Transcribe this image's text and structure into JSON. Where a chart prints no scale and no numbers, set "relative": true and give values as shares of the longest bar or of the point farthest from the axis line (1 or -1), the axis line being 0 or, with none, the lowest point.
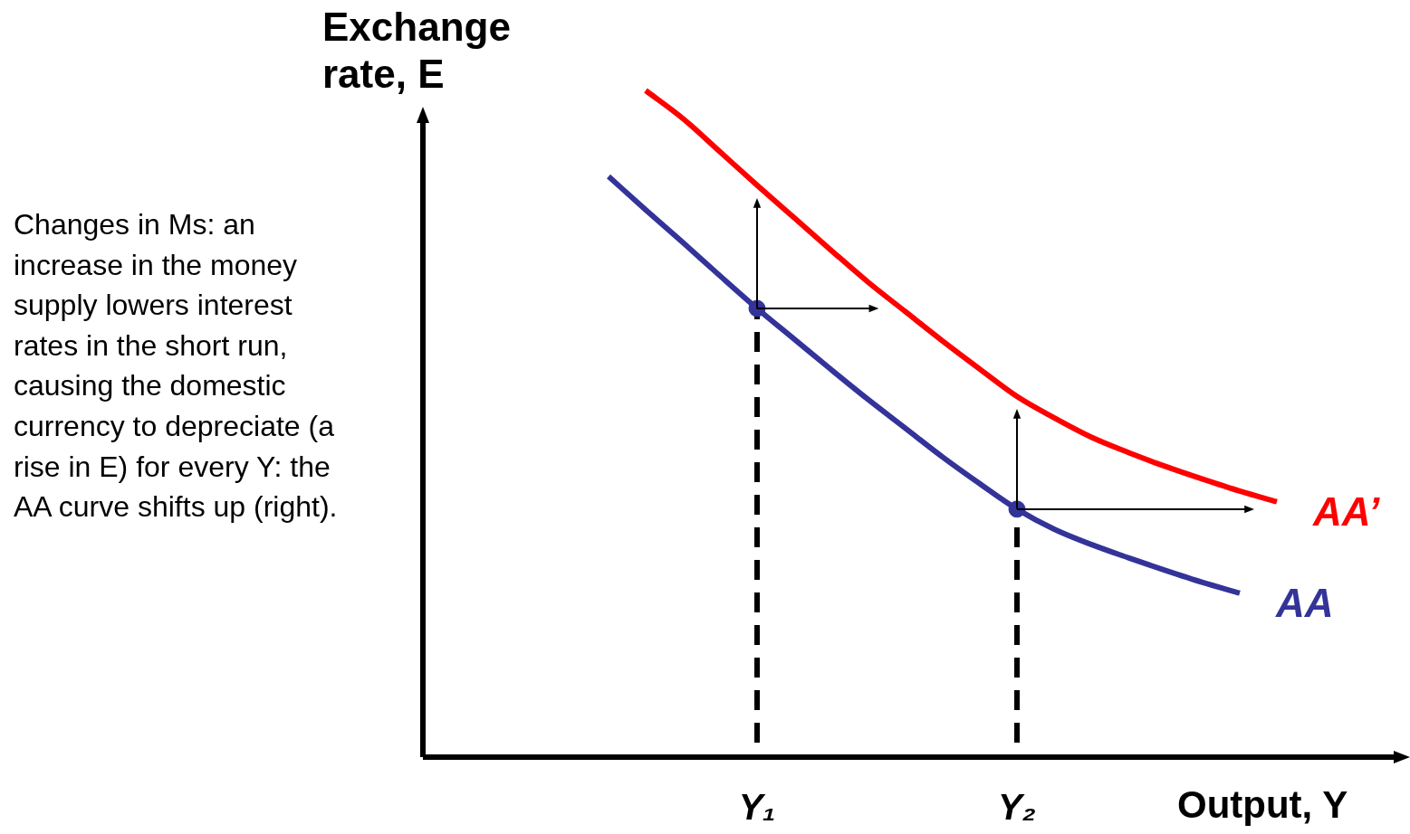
{
  "chart_data": {
    "type": "line",
    "relative": true,
    "categories": [
      null,
      null,
      null,
      null,
      null,
      null,
      null,
      null,
      null,
      "Y₁",
      null,
      null,
      null,
      null,
      null,
      null,
      "Y₂",
      null,
      null,
      null,
      null,
      null,
      null,
      null,
      null,
      null,
      null
    ],
    "xlabel": "Output, Y",
    "ylabel": "Exchange rate, E",
    "marker": "none",
    "annotations": [
      "Changes in Ms: an increase in the money supply lowers interest rates in the short run, causing the domestic currency to depreciate (a rise in E) for every Y: the AA curve shifts up (right)."
    ],
    "ref_lines": [
      {
        "axis": "x",
        "value": "Y₁",
        "line_style": "dashed",
        "color": "#000000"
      },
      {
        "axis": "x",
        "value": "Y₂",
        "line_style": "dashed",
        "color": "#000000"
      }
    ],
    "series": [
      {
        "name": "AA’",
        "color": "#ff0000",
        "values": [
          null,
          null,
          null,
          null,
          null,
          null,
          1,
          0.958,
          0.908,
          0.858,
          0.809,
          0.76,
          0.712,
          0.668,
          0.624,
          0.582,
          0.541,
          0.509,
          0.48,
          0.457,
          0.436,
          0.417,
          0.399,
          0.383,
          null,
          null,
          null
        ]
      },
      {
        "name": "AA",
        "color": "#333399",
        "values": [
          null,
          null,
          null,
          null,
          null,
          0.871,
          0.821,
          0.772,
          0.722,
          0.673,
          0.627,
          0.581,
          0.536,
          0.493,
          0.45,
          0.41,
          0.372,
          0.342,
          0.319,
          0.299,
          0.28,
          0.262,
          0.246,
          null,
          null,
          null,
          null
        ]
      },
      {
        "type": "scatter",
        "color": "#333399",
        "marker": "circle",
        "x": [
          "Y₁",
          "Y₂"
        ],
        "values": [
          0.673,
          0.372
        ]
      }
    ]
  }
}
